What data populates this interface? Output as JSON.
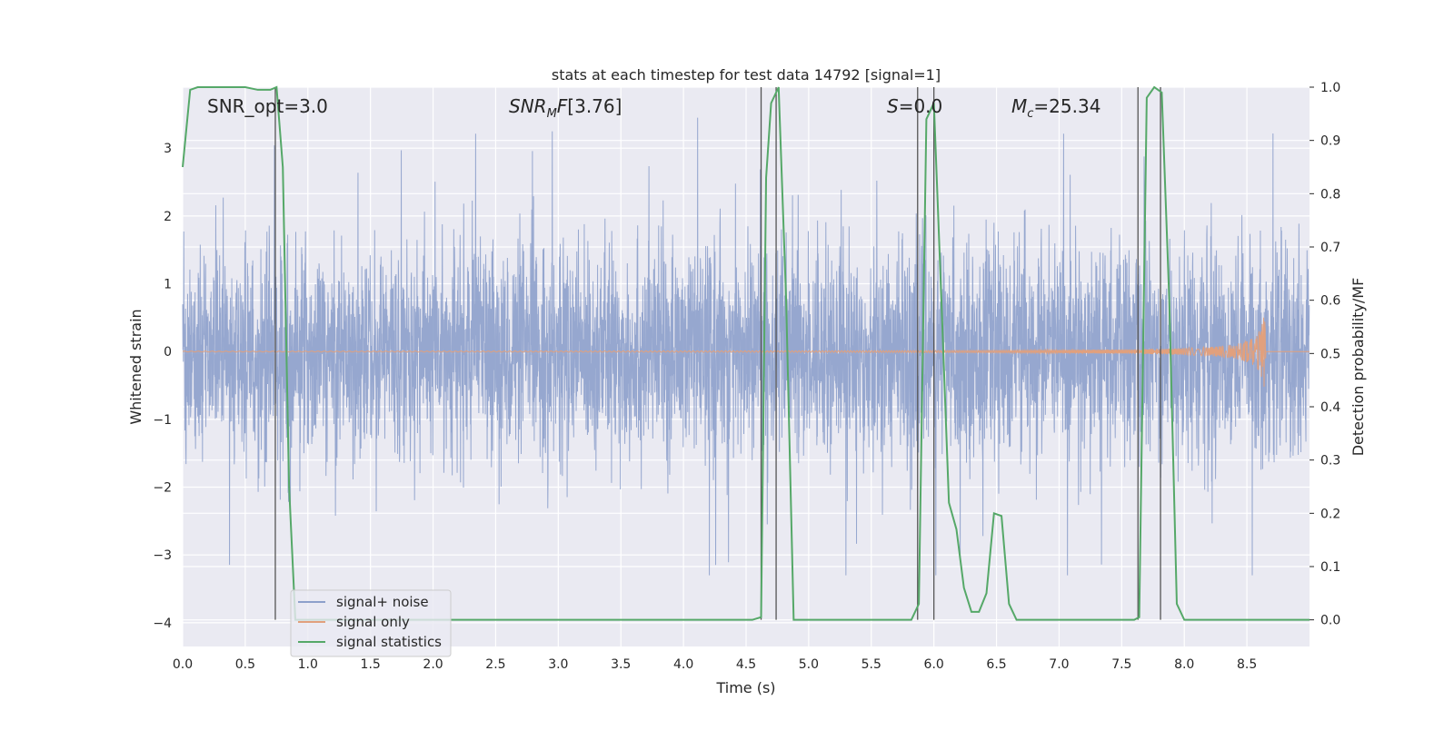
{
  "chart_data": {
    "type": "line",
    "title": "stats at each timestep for test data 14792 [signal=1]",
    "xlabel": "Time (s)",
    "ylabel_left": "Whitened strain",
    "ylabel_right": "Detection probability/MF",
    "xlim": [
      0.0,
      9.0
    ],
    "ylim_left": [
      -4.35,
      3.9
    ],
    "ylim_right": [
      -0.05,
      1.0
    ],
    "x_ticks": [
      0.0,
      0.5,
      1.0,
      1.5,
      2.0,
      2.5,
      3.0,
      3.5,
      4.0,
      4.5,
      5.0,
      5.5,
      6.0,
      6.5,
      7.0,
      7.5,
      8.0,
      8.5
    ],
    "x_tick_labels": [
      "0.0",
      "0.5",
      "1.0",
      "1.5",
      "2.0",
      "2.5",
      "3.0",
      "3.5",
      "4.0",
      "4.5",
      "5.0",
      "5.5",
      "6.0",
      "6.5",
      "7.0",
      "7.5",
      "8.0",
      "8.5"
    ],
    "y_left_ticks": [
      -4,
      -3,
      -2,
      -1,
      0,
      1,
      2,
      3
    ],
    "y_left_tick_labels": [
      "−4",
      "−3",
      "−2",
      "−1",
      "0",
      "1",
      "2",
      "3"
    ],
    "y_right_ticks": [
      0.0,
      0.1,
      0.2,
      0.3,
      0.4,
      0.5,
      0.6,
      0.7,
      0.8,
      0.9,
      1.0
    ],
    "y_right_tick_labels": [
      "0.0",
      "0.1",
      "0.2",
      "0.3",
      "0.4",
      "0.5",
      "0.6",
      "0.7",
      "0.8",
      "0.9",
      "1.0"
    ],
    "grid": true,
    "legend_placement": "lower-left",
    "annotations": {
      "snr_opt": "SNR_opt=3.0",
      "snr_mf": "[3.76]",
      "s": "=0.0",
      "mc": "=25.34"
    },
    "series": [
      {
        "name": "signal+ noise",
        "color": "#8da0cb",
        "axis": "left",
        "description_values": "whitened strain noise, amplitude mostly between -2 and 2.5 with spikes to about 3.5 and -3.3",
        "duration": 9.0
      },
      {
        "name": "signal only",
        "color": "#e1a07d",
        "axis": "left",
        "chirp_merger_time": 8.65,
        "peak_amplitude": 0.55
      },
      {
        "name": "signal statistics",
        "color": "#55a868",
        "axis": "right",
        "x": [
          0.0,
          0.06,
          0.12,
          0.2,
          0.3,
          0.4,
          0.5,
          0.6,
          0.7,
          0.75,
          0.8,
          0.85,
          0.9,
          1.0,
          2.0,
          3.0,
          4.0,
          4.55,
          4.62,
          4.66,
          4.7,
          4.76,
          4.82,
          4.88,
          5.0,
          5.5,
          5.82,
          5.88,
          5.94,
          6.0,
          6.06,
          6.12,
          6.18,
          6.24,
          6.3,
          6.36,
          6.42,
          6.48,
          6.54,
          6.6,
          6.66,
          6.72,
          7.0,
          7.6,
          7.64,
          7.7,
          7.76,
          7.82,
          7.88,
          7.94,
          8.0,
          8.3,
          8.5,
          9.0
        ],
        "values": [
          0.85,
          0.995,
          1.0,
          1.0,
          1.0,
          1.0,
          1.0,
          0.995,
          0.995,
          1.0,
          0.85,
          0.25,
          0.0,
          0.0,
          0.0,
          0.0,
          0.0,
          0.0,
          0.005,
          0.83,
          0.97,
          1.0,
          0.6,
          0.0,
          0.0,
          0.0,
          0.0,
          0.03,
          0.94,
          0.97,
          0.6,
          0.22,
          0.17,
          0.06,
          0.015,
          0.015,
          0.05,
          0.2,
          0.195,
          0.03,
          0.0,
          0.0,
          0.0,
          0.0,
          0.005,
          0.98,
          1.0,
          0.99,
          0.6,
          0.03,
          0.0,
          0.0,
          0.0,
          0.0
        ]
      }
    ],
    "vertical_markers": [
      0.74,
      4.62,
      4.74,
      5.87,
      6.0,
      7.63,
      7.81
    ]
  }
}
